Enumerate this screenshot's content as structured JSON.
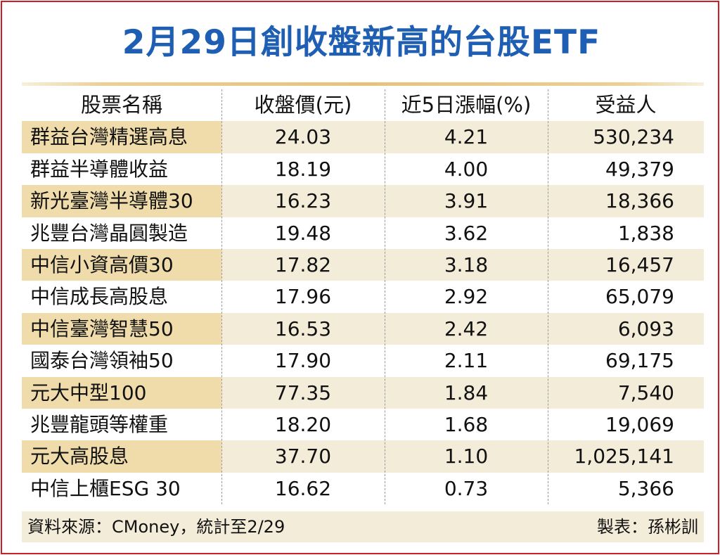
{
  "title": "2月29日創收盤新高的台股ETF",
  "chart_data": {
    "type": "table",
    "title": "2月29日創收盤新高的台股ETF",
    "columns": [
      "股票名稱",
      "收盤價(元)",
      "近5日漲幅(%)",
      "受益人"
    ],
    "rows": [
      [
        "群益台灣精選高息",
        "24.03",
        "4.21",
        "530,234"
      ],
      [
        "群益半導體收益",
        "18.19",
        "4.00",
        "49,379"
      ],
      [
        "新光臺灣半導體30",
        "16.23",
        "3.91",
        "18,366"
      ],
      [
        "兆豐台灣晶圓製造",
        "19.48",
        "3.62",
        "1,838"
      ],
      [
        "中信小資高價30",
        "17.82",
        "3.18",
        "16,457"
      ],
      [
        "中信成長高股息",
        "17.96",
        "2.92",
        "65,079"
      ],
      [
        "中信臺灣智慧50",
        "16.53",
        "2.42",
        "6,093"
      ],
      [
        "國泰台灣領袖50",
        "17.90",
        "2.11",
        "69,175"
      ],
      [
        "元大中型100",
        "77.35",
        "1.84",
        "7,540"
      ],
      [
        "兆豐龍頭等權重",
        "18.20",
        "1.68",
        "19,069"
      ],
      [
        "元大高股息",
        "37.70",
        "1.10",
        "1,025,141"
      ],
      [
        "中信上櫃ESG 30",
        "16.62",
        "0.73",
        "5,366"
      ]
    ]
  },
  "footer": {
    "source": "資料來源：CMoney，統計至2/29",
    "maker": "製表：孫彬訓"
  },
  "colors": {
    "title": "#1f5fb3",
    "frame": "#c8202a",
    "band": "#f3ecd9",
    "band_name": "#efdcaa"
  }
}
